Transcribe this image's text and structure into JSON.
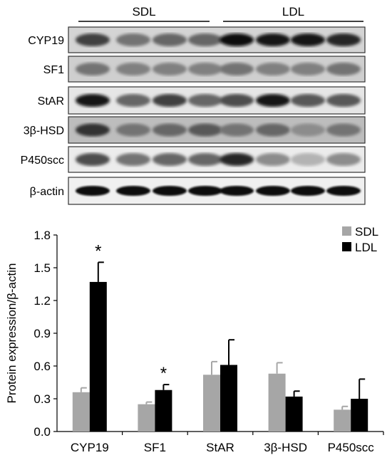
{
  "blot": {
    "groups": [
      {
        "label": "SDL"
      },
      {
        "label": "LDL"
      }
    ],
    "rows": [
      {
        "label": "CYP19"
      },
      {
        "label": "SF1"
      },
      {
        "label": "StAR"
      },
      {
        "label": "3β-HSD"
      },
      {
        "label": "P450scc"
      },
      {
        "label": "β-actin"
      }
    ]
  },
  "chart_data": {
    "type": "bar",
    "categories": [
      "CYP19",
      "SF1",
      "StAR",
      "3β-HSD",
      "P450scc"
    ],
    "series": [
      {
        "name": "SDL",
        "color": "#a6a6a6",
        "values": [
          0.36,
          0.25,
          0.52,
          0.53,
          0.2
        ],
        "errors": [
          0.04,
          0.02,
          0.12,
          0.1,
          0.03
        ]
      },
      {
        "name": "LDL",
        "color": "#000000",
        "values": [
          1.37,
          0.38,
          0.61,
          0.32,
          0.3
        ],
        "errors": [
          0.18,
          0.05,
          0.23,
          0.05,
          0.18
        ]
      }
    ],
    "significance": [
      "*",
      "*",
      "",
      "",
      ""
    ],
    "ylabel": "Protein expression/β-actin",
    "ylim": [
      0.0,
      1.8
    ],
    "yticks": [
      "0.0",
      "0.3",
      "0.6",
      "0.9",
      "1.2",
      "1.5",
      "1.8"
    ],
    "legend_position": "top-right",
    "grid": false
  }
}
